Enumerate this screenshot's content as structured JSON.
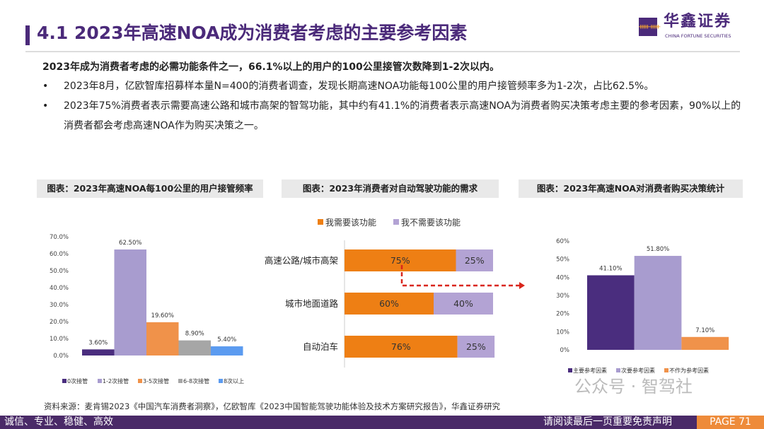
{
  "header": {
    "title": "4.1 2023年高速NOA成为消费者考虑的主要参考因素",
    "logo_cn": "华鑫证券",
    "logo_en": "CHINA FORTUNE SECURITIES"
  },
  "lead": "2023年成为消费者考虑的必需功能条件之一，66.1%以上的用户的100公里接管次数降到1-2次以内。",
  "bullets": [
    "2023年8月，亿欧智库招募样本量N=400的消费者调查，发现长期高速NOA功能每100公里的用户接管频率多为1-2次，占比62.5%。",
    "2023年75%消费者表示需要高速公路和城市高架的智驾功能，其中约有41.1%的消费者表示高速NOA为消费者购买决策考虑主要的参考因素，90%以上的消费者都会考虑高速NOA作为购买决策之一。"
  ],
  "colors": {
    "purple": "#4b2a7a",
    "orange": "#ee8b3a",
    "lavender": "#a89ccf"
  },
  "chart_data": [
    {
      "type": "bar",
      "title": "图表：2023年高速NOA每100公里的用户接管频率",
      "categories": [
        "0次接管",
        "1-2次接管",
        "3-5次接管",
        "6-8次接管",
        "8次以上"
      ],
      "values": [
        3.6,
        62.5,
        19.6,
        8.9,
        5.4
      ],
      "data_labels": [
        "3.60%",
        "62.50%",
        "19.60%",
        "8.90%",
        "5.40%"
      ],
      "colors": [
        "#4a2d7e",
        "#a89ccf",
        "#f0924a",
        "#a6a6a6",
        "#5b9bf0"
      ],
      "ylim": [
        0,
        70
      ],
      "yticks": [
        "0.0%",
        "10.0%",
        "20.0%",
        "30.0%",
        "40.0%",
        "50.0%",
        "60.0%",
        "70.0%"
      ],
      "legend": "bottom"
    },
    {
      "type": "bar",
      "orientation": "horizontal",
      "stacked": true,
      "title": "图表：2023年消费者对自动驾驶功能的需求",
      "categories": [
        "高速公路/城市高架",
        "城市地面道路",
        "自动泊车"
      ],
      "series": [
        {
          "name": "我需要该功能",
          "values": [
            75,
            60,
            76
          ],
          "color": "#ee7f14"
        },
        {
          "name": "我不需要该功能",
          "values": [
            25,
            40,
            25
          ],
          "color": "#b3a3d4"
        }
      ],
      "legend": "top"
    },
    {
      "type": "bar",
      "title": "图表：2023年高速NOA对消费者购买决策统计",
      "categories": [
        "主要参考因素",
        "次要参考因素",
        "不作为参考因素"
      ],
      "values": [
        41.1,
        51.8,
        7.1
      ],
      "data_labels": [
        "41.10%",
        "51.80%",
        "7.10%"
      ],
      "colors": [
        "#4a2d7e",
        "#a89ccf",
        "#f0924a"
      ],
      "ylim": [
        0,
        60
      ],
      "yticks": [
        "0%",
        "10%",
        "20%",
        "30%",
        "40%",
        "50%",
        "60%"
      ],
      "legend": "bottom"
    }
  ],
  "footer": {
    "source": "资料来源：麦肯锡2023《中国汽车消费者洞察》，亿欧智库《2023中国智能驾驶功能体验及技术方案研究报告》，华鑫证券研究",
    "watermark": "公众号 · 智驾社",
    "motto": "诚信、专业、稳健、高效",
    "disclaimer": "请阅读最后一页重要免责声明",
    "page": "PAGE 71"
  }
}
